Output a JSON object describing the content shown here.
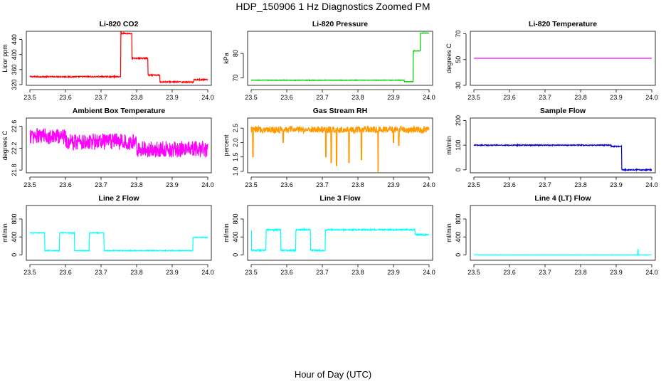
{
  "figure": {
    "title": "HDP_150906  1 Hz Diagnostics Zoomed PM",
    "xlabel": "Hour of Day (UTC)"
  },
  "chart_data": [
    {
      "type": "line",
      "title": "Li-820 CO2",
      "ylabel": "Licor ppm",
      "color": "#ff0000",
      "xlim": [
        23.49,
        24.01
      ],
      "xticks": [
        23.5,
        23.6,
        23.7,
        23.8,
        23.9,
        24.0
      ],
      "ylim": [
        318,
        462
      ],
      "yticks": [
        320,
        360,
        400,
        440
      ],
      "segments": [
        [
          23.5,
          23.756,
          341
        ],
        [
          23.756,
          23.787,
          456
        ],
        [
          23.787,
          23.832,
          390
        ],
        [
          23.832,
          23.865,
          345
        ],
        [
          23.865,
          23.96,
          327
        ],
        [
          23.96,
          24.0,
          333
        ]
      ],
      "noise": 1.5,
      "spikes": [
        [
          23.756,
          461
        ]
      ]
    },
    {
      "type": "line",
      "title": "Li-820 Pressure",
      "ylabel": "kPa",
      "color": "#00cc00",
      "xlim": [
        23.49,
        24.01
      ],
      "xticks": [
        23.5,
        23.6,
        23.7,
        23.8,
        23.9,
        24.0
      ],
      "ylim": [
        67,
        89
      ],
      "yticks": [
        70,
        80
      ],
      "segments": [
        [
          23.5,
          23.93,
          69.1
        ],
        [
          23.93,
          23.955,
          68.5
        ],
        [
          23.955,
          23.975,
          81
        ],
        [
          23.975,
          24.0,
          88.3
        ]
      ],
      "noise": 0.1,
      "spikes": []
    },
    {
      "type": "line",
      "title": "Li-820 Temperature",
      "ylabel": "degrees C",
      "color": "#ff00ff",
      "xlim": [
        23.49,
        24.01
      ],
      "xticks": [
        23.5,
        23.6,
        23.7,
        23.8,
        23.9,
        24.0
      ],
      "ylim": [
        30,
        72
      ],
      "yticks": [
        30,
        50,
        70
      ],
      "segments": [
        [
          23.5,
          24.0,
          51
        ]
      ],
      "noise": 0,
      "spikes": []
    },
    {
      "type": "line",
      "title": "Ambient Box Temperature",
      "ylabel": "degrees C",
      "color": "#ff00ff",
      "xlim": [
        23.49,
        24.01
      ],
      "xticks": [
        23.5,
        23.6,
        23.7,
        23.8,
        23.9,
        24.0
      ],
      "ylim": [
        21.75,
        22.75
      ],
      "yticks": [
        21.8,
        22.2,
        22.6
      ],
      "segments": [
        [
          23.5,
          23.6,
          22.42
        ],
        [
          23.6,
          23.8,
          22.32
        ],
        [
          23.8,
          24.0,
          22.18
        ]
      ],
      "noise": 0.15,
      "spikes": []
    },
    {
      "type": "line",
      "title": "Gas Stream RH",
      "ylabel": "percent",
      "color": "#ff9900",
      "xlim": [
        23.49,
        24.01
      ],
      "xticks": [
        23.5,
        23.6,
        23.7,
        23.8,
        23.9,
        24.0
      ],
      "ylim": [
        0.95,
        2.85
      ],
      "yticks": [
        1.0,
        1.5,
        2.0,
        2.5
      ],
      "segments": [
        [
          23.5,
          24.0,
          2.45
        ]
      ],
      "noise": 0.12,
      "spikes": [
        [
          23.505,
          1.5
        ],
        [
          23.71,
          1.5
        ],
        [
          23.725,
          1.3
        ],
        [
          23.74,
          1.2
        ],
        [
          23.775,
          1.3
        ],
        [
          23.81,
          1.4
        ],
        [
          23.857,
          1.0
        ],
        [
          23.915,
          1.9
        ],
        [
          23.9,
          2.0
        ],
        [
          23.59,
          2.0
        ]
      ]
    },
    {
      "type": "line",
      "title": "Sample Flow",
      "ylabel": "ml/min",
      "color": "#0000cc",
      "xlim": [
        23.49,
        24.01
      ],
      "xticks": [
        23.5,
        23.6,
        23.7,
        23.8,
        23.9,
        24.0
      ],
      "ylim": [
        -12,
        210
      ],
      "yticks": [
        0,
        100,
        200
      ],
      "segments": [
        [
          23.5,
          23.885,
          100
        ],
        [
          23.885,
          23.915,
          95
        ],
        [
          23.915,
          24.0,
          0
        ]
      ],
      "noise": 2,
      "spikes": []
    },
    {
      "type": "line",
      "title": "Line 2 Flow",
      "ylabel": "ml/min",
      "color": "#00ffff",
      "xlim": [
        23.49,
        24.01
      ],
      "xticks": [
        23.5,
        23.6,
        23.7,
        23.8,
        23.9,
        24.0
      ],
      "ylim": [
        -120,
        1100
      ],
      "yticks": [
        0,
        400,
        800
      ],
      "segments": [
        [
          23.5,
          23.542,
          490
        ],
        [
          23.542,
          23.583,
          95
        ],
        [
          23.583,
          23.625,
          490
        ],
        [
          23.625,
          23.667,
          95
        ],
        [
          23.667,
          23.708,
          490
        ],
        [
          23.708,
          23.958,
          95
        ],
        [
          23.958,
          24.0,
          390
        ]
      ],
      "noise": 8,
      "spikes": []
    },
    {
      "type": "line",
      "title": "Line 3 Flow",
      "ylabel": "ml/min",
      "color": "#00ffff",
      "xlim": [
        23.49,
        24.01
      ],
      "xticks": [
        23.5,
        23.6,
        23.7,
        23.8,
        23.9,
        24.0
      ],
      "ylim": [
        -120,
        1100
      ],
      "yticks": [
        0,
        400,
        800
      ],
      "segments": [
        [
          23.5,
          23.542,
          100
        ],
        [
          23.542,
          23.583,
          560
        ],
        [
          23.583,
          23.625,
          100
        ],
        [
          23.625,
          23.667,
          560
        ],
        [
          23.667,
          23.708,
          100
        ],
        [
          23.708,
          23.96,
          560
        ],
        [
          23.96,
          24.0,
          450
        ]
      ],
      "noise": 14,
      "spikes": [
        [
          23.5,
          540
        ]
      ]
    },
    {
      "type": "line",
      "title": "Line 4 (LT) Flow",
      "ylabel": "ml/min",
      "color": "#00ffff",
      "xlim": [
        23.49,
        24.01
      ],
      "xticks": [
        23.5,
        23.6,
        23.7,
        23.8,
        23.9,
        24.0
      ],
      "ylim": [
        -120,
        1100
      ],
      "yticks": [
        0,
        400,
        800
      ],
      "segments": [
        [
          23.5,
          24.0,
          0
        ]
      ],
      "noise": 3,
      "spikes": [
        [
          23.961,
          120
        ]
      ]
    }
  ]
}
